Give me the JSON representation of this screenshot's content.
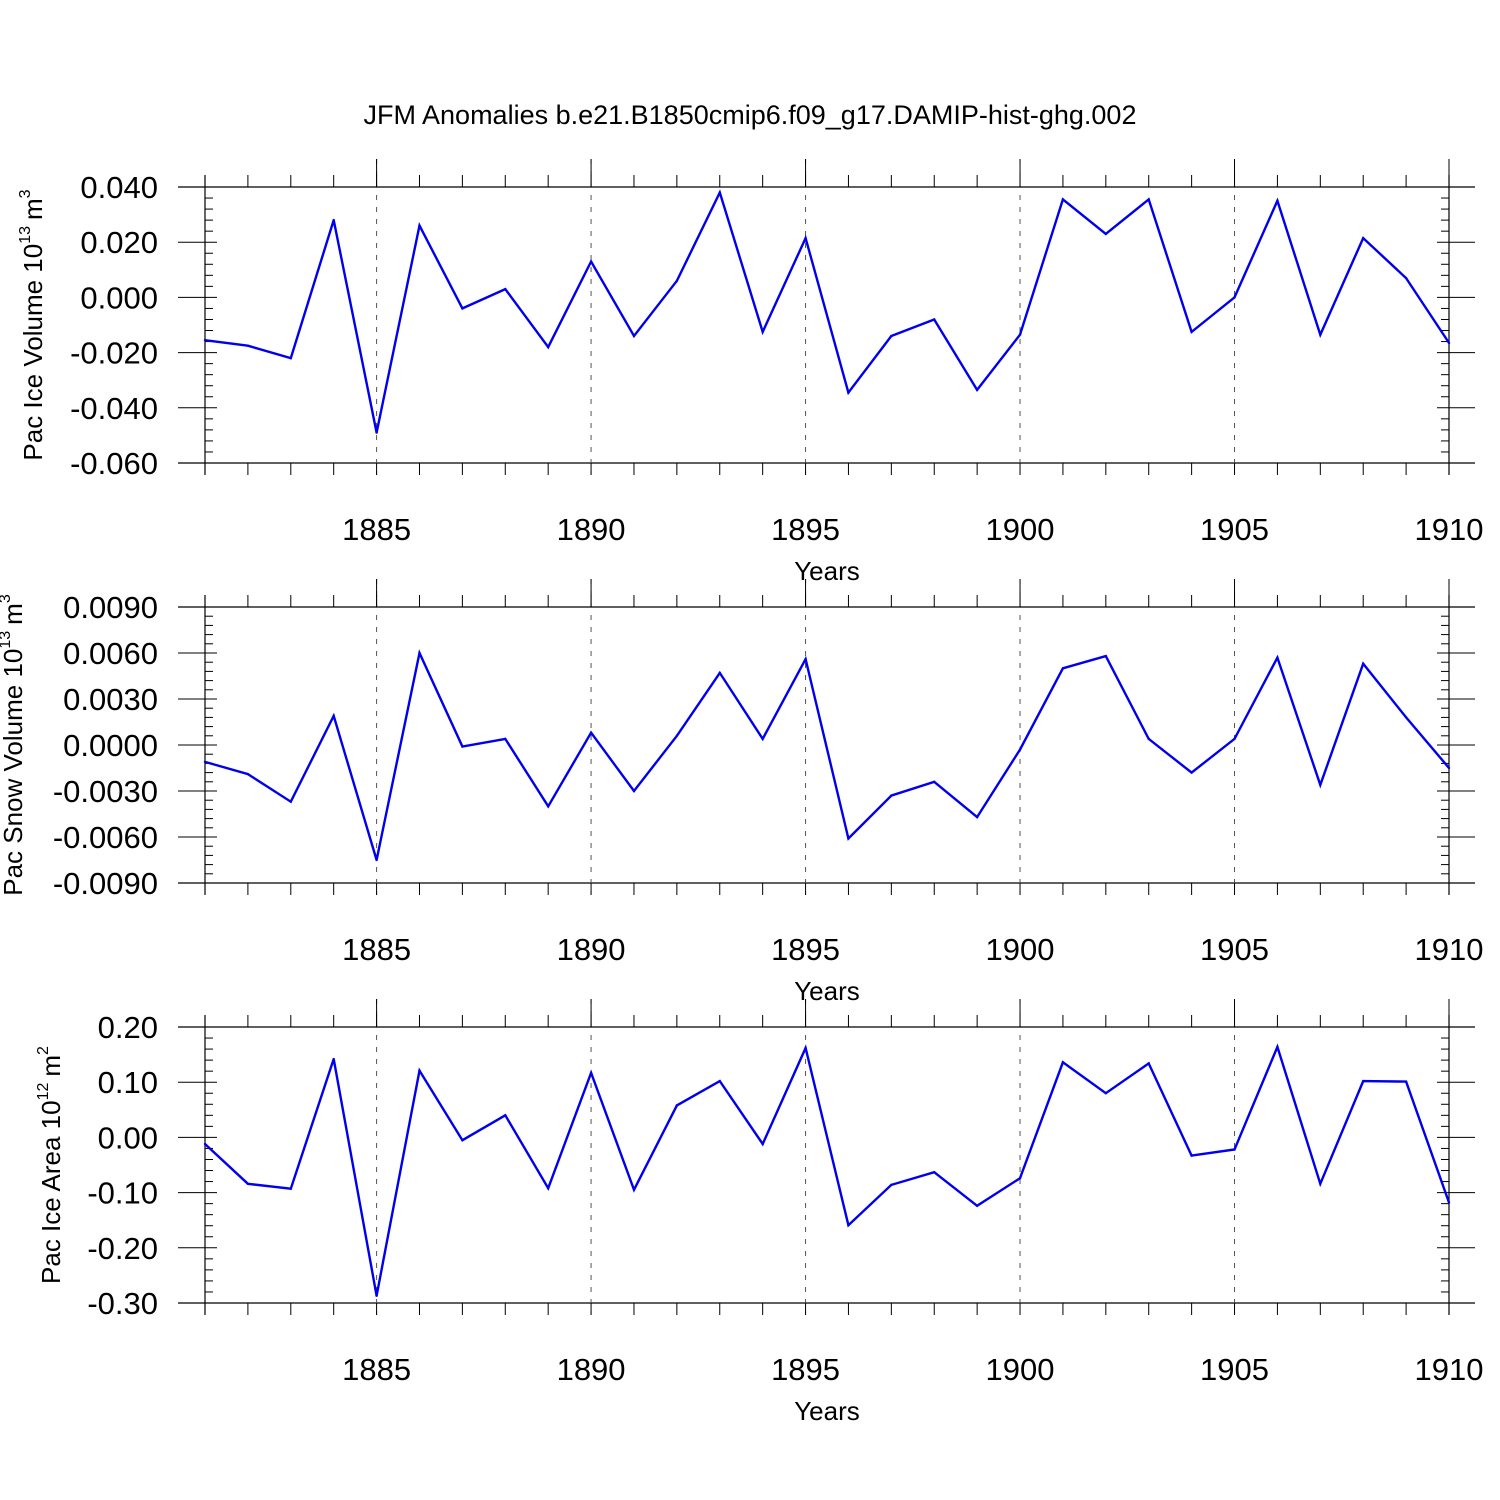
{
  "title": "JFM Anomalies b.e21.B1850cmip6.f09_g17.DAMIP-hist-ghg.002",
  "colors": {
    "line": "#0000ee",
    "axis": "#000000",
    "grid": "#555555"
  },
  "chart_data": [
    {
      "type": "line",
      "ylabel": "Pac Ice Volume 10",
      "ylabel_exponent": "13",
      "ylabel_unit": "m",
      "ylabel_unit_exponent": "3",
      "xlabel": "Years",
      "xlim": [
        1881,
        1910
      ],
      "ylim": [
        -0.06,
        0.04
      ],
      "yticks": [
        -0.06,
        -0.04,
        -0.02,
        0.0,
        0.02,
        0.04
      ],
      "ytick_labels": [
        "-0.060",
        "-0.040",
        "-0.020",
        "0.000",
        "0.020",
        "0.040"
      ],
      "xticks": [
        1885,
        1890,
        1895,
        1900,
        1905,
        1910
      ],
      "xtick_labels": [
        "1885",
        "1890",
        "1895",
        "1900",
        "1905",
        "1910"
      ],
      "grid_x": [
        1885,
        1890,
        1895,
        1900,
        1905
      ],
      "x": [
        1881,
        1882,
        1883,
        1884,
        1885,
        1886,
        1887,
        1888,
        1889,
        1890,
        1891,
        1892,
        1893,
        1894,
        1895,
        1896,
        1897,
        1898,
        1899,
        1900,
        1901,
        1902,
        1903,
        1904,
        1905,
        1906,
        1907,
        1908,
        1909,
        1910
      ],
      "values": [
        -0.0155,
        -0.0175,
        -0.022,
        0.028,
        -0.049,
        0.026,
        -0.004,
        0.003,
        -0.018,
        0.013,
        -0.014,
        0.006,
        0.038,
        -0.0125,
        0.0215,
        -0.0345,
        -0.014,
        -0.008,
        -0.0335,
        -0.0135,
        0.0355,
        0.023,
        0.0355,
        -0.0125,
        0.0,
        0.035,
        -0.0135,
        0.0215,
        0.007,
        -0.0165
      ]
    },
    {
      "type": "line",
      "ylabel": "Pac Snow Volume 10",
      "ylabel_exponent": "13",
      "ylabel_unit": "m",
      "ylabel_unit_exponent": "3",
      "xlabel": "Years",
      "xlim": [
        1881,
        1910
      ],
      "ylim": [
        -0.009,
        0.009
      ],
      "yticks": [
        -0.009,
        -0.006,
        -0.003,
        0.0,
        0.003,
        0.006,
        0.009
      ],
      "ytick_labels": [
        "-0.0090",
        "-0.0060",
        "-0.0030",
        "0.0000",
        "0.0030",
        "0.0060",
        "0.0090"
      ],
      "xticks": [
        1885,
        1890,
        1895,
        1900,
        1905,
        1910
      ],
      "xtick_labels": [
        "1885",
        "1890",
        "1895",
        "1900",
        "1905",
        "1910"
      ],
      "grid_x": [
        1885,
        1890,
        1895,
        1900,
        1905
      ],
      "x": [
        1881,
        1882,
        1883,
        1884,
        1885,
        1886,
        1887,
        1888,
        1889,
        1890,
        1891,
        1892,
        1893,
        1894,
        1895,
        1896,
        1897,
        1898,
        1899,
        1900,
        1901,
        1902,
        1903,
        1904,
        1905,
        1906,
        1907,
        1908,
        1909,
        1910
      ],
      "values": [
        -0.0011,
        -0.0019,
        -0.0037,
        0.0019,
        -0.0075,
        0.006,
        -0.0001,
        0.0004,
        -0.004,
        0.0008,
        -0.003,
        0.0006,
        0.0047,
        0.0004,
        0.0056,
        -0.0061,
        -0.0033,
        -0.0024,
        -0.0047,
        -0.0003,
        0.005,
        0.0058,
        0.0004,
        -0.0018,
        0.0004,
        0.0057,
        -0.0026,
        0.0053,
        0.0018,
        -0.0015
      ]
    },
    {
      "type": "line",
      "ylabel": "Pac Ice Area 10",
      "ylabel_exponent": "12",
      "ylabel_unit": "m",
      "ylabel_unit_exponent": "2",
      "xlabel": "Years",
      "xlim": [
        1881,
        1910
      ],
      "ylim": [
        -0.3,
        0.2
      ],
      "yticks": [
        -0.3,
        -0.2,
        -0.1,
        0.0,
        0.1,
        0.2
      ],
      "ytick_labels": [
        "-0.30",
        "-0.20",
        "-0.10",
        "0.00",
        "0.10",
        "0.20"
      ],
      "xticks": [
        1885,
        1890,
        1895,
        1900,
        1905,
        1910
      ],
      "xtick_labels": [
        "1885",
        "1890",
        "1895",
        "1900",
        "1905",
        "1910"
      ],
      "grid_x": [
        1885,
        1890,
        1895,
        1900,
        1905
      ],
      "x": [
        1881,
        1882,
        1883,
        1884,
        1885,
        1886,
        1887,
        1888,
        1889,
        1890,
        1891,
        1892,
        1893,
        1894,
        1895,
        1896,
        1897,
        1898,
        1899,
        1900,
        1901,
        1902,
        1903,
        1904,
        1905,
        1906,
        1907,
        1908,
        1909,
        1910
      ],
      "values": [
        -0.012,
        -0.084,
        -0.093,
        0.142,
        -0.287,
        0.121,
        -0.005,
        0.04,
        -0.092,
        0.117,
        -0.095,
        0.058,
        0.102,
        -0.012,
        0.162,
        -0.159,
        -0.086,
        -0.063,
        -0.124,
        -0.074,
        0.136,
        0.08,
        0.134,
        -0.033,
        -0.022,
        0.164,
        -0.084,
        0.102,
        0.101,
        -0.118
      ]
    }
  ]
}
